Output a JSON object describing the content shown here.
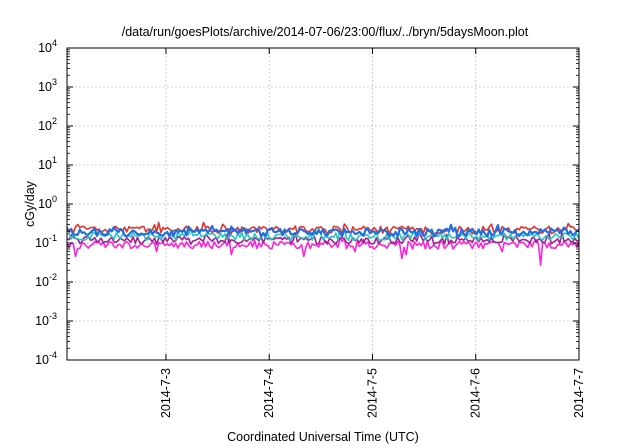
{
  "chart_data": {
    "type": "line",
    "title": "/data/run/goesPlots/archive/2014-07-06/23:00/flux/../bryn/5daysMoon.plot",
    "xlabel": "Coordinated Universal Time (UTC)",
    "ylabel": "cGy/day",
    "yscale": "log",
    "ylim": [
      0.0001,
      10000
    ],
    "y_ticks": [
      {
        "value": 0.0001,
        "base": "10",
        "exp": "-4"
      },
      {
        "value": 0.001,
        "base": "10",
        "exp": "-3"
      },
      {
        "value": 0.01,
        "base": "10",
        "exp": "-2"
      },
      {
        "value": 0.1,
        "base": "10",
        "exp": "-1"
      },
      {
        "value": 1,
        "base": "10",
        "exp": "0"
      },
      {
        "value": 10,
        "base": "10",
        "exp": "1"
      },
      {
        "value": 100,
        "base": "10",
        "exp": "2"
      },
      {
        "value": 1000,
        "base": "10",
        "exp": "3"
      },
      {
        "value": 10000,
        "base": "10",
        "exp": "4"
      }
    ],
    "xlim": [
      "2014-07-02 01:00",
      "2014-07-07 00:00"
    ],
    "x_ticks": [
      "2014-7-3",
      "2014-7-4",
      "2014-7-5",
      "2014-7-6",
      "2014-7-7"
    ],
    "x_tick_values": [
      "2014-07-03",
      "2014-07-04",
      "2014-07-05",
      "2014-07-06",
      "2014-07-07"
    ],
    "grid": true,
    "legend": "none",
    "series": [
      {
        "color": "#e8302a",
        "level": 0.22,
        "dips": []
      },
      {
        "color": "#1f6fe0",
        "level": 0.19,
        "dips": []
      },
      {
        "color": "#22c8c0",
        "level": 0.15,
        "dips": []
      },
      {
        "color": "#a02090",
        "level": 0.12,
        "dips": []
      },
      {
        "color": "#ff22dd",
        "level": 0.09,
        "dips": [
          {
            "x": "2014-07-02 03:00",
            "y": 0.045
          },
          {
            "x": "2014-07-02 22:00",
            "y": 0.06
          },
          {
            "x": "2014-07-03 15:00",
            "y": 0.05
          },
          {
            "x": "2014-07-04 08:00",
            "y": 0.045
          },
          {
            "x": "2014-07-04 20:00",
            "y": 0.06
          },
          {
            "x": "2014-07-05 07:00",
            "y": 0.04
          },
          {
            "x": "2014-07-05 08:00",
            "y": 0.05
          },
          {
            "x": "2014-07-06 06:00",
            "y": 0.06
          },
          {
            "x": "2014-07-06 15:00",
            "y": 0.027
          }
        ]
      }
    ]
  }
}
